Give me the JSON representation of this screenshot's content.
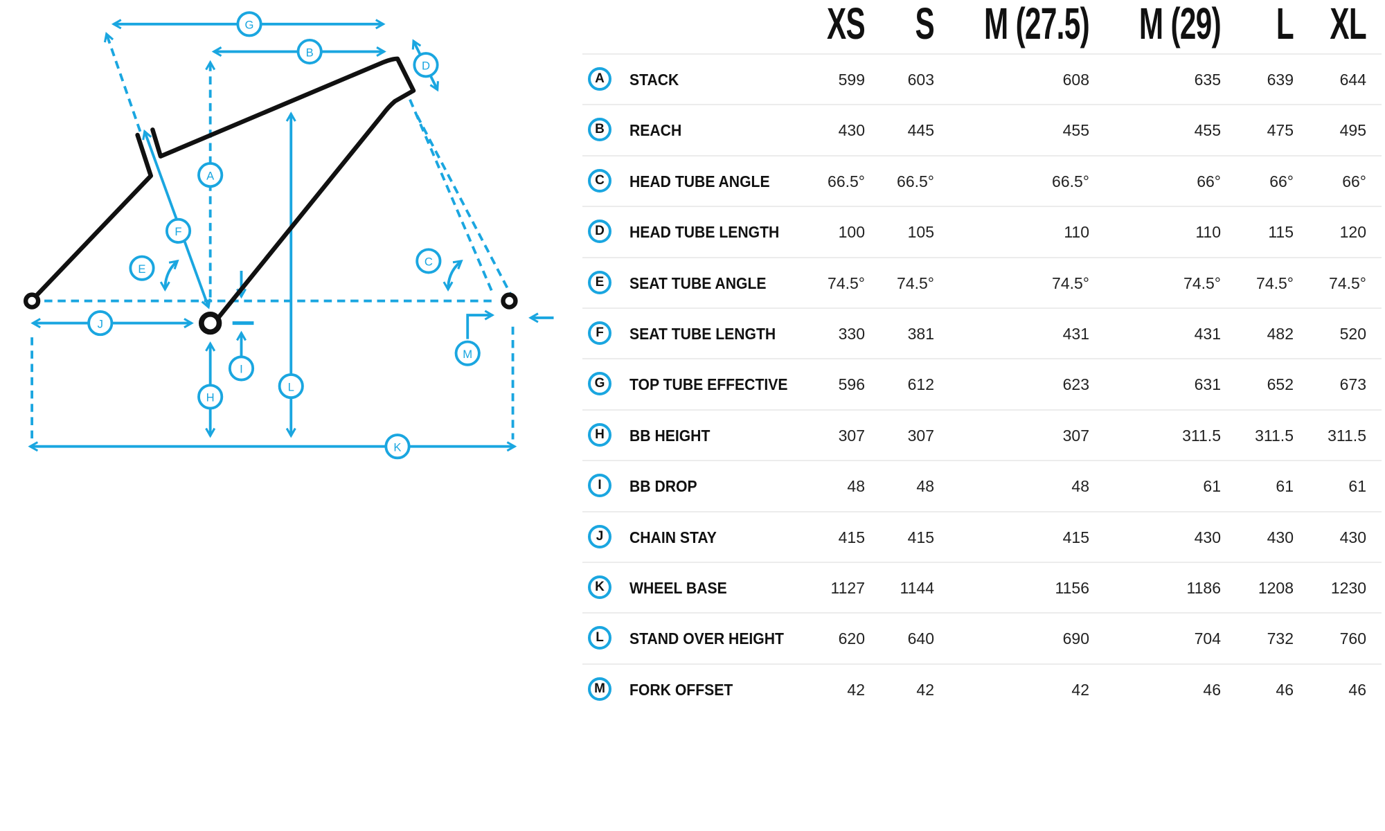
{
  "colors": {
    "accent": "#1aa6e0",
    "frame": "#111111",
    "divider": "#ececec"
  },
  "sizes": [
    "XS",
    "S",
    "M (27.5)",
    "M (29)",
    "L",
    "XL"
  ],
  "rows": [
    {
      "letter": "A",
      "label": "STACK",
      "values": [
        "599",
        "603",
        "608",
        "635",
        "639",
        "644"
      ]
    },
    {
      "letter": "B",
      "label": "REACH",
      "values": [
        "430",
        "445",
        "455",
        "455",
        "475",
        "495"
      ]
    },
    {
      "letter": "C",
      "label": "HEAD TUBE ANGLE",
      "values": [
        "66.5°",
        "66.5°",
        "66.5°",
        "66°",
        "66°",
        "66°"
      ]
    },
    {
      "letter": "D",
      "label": "HEAD TUBE LENGTH",
      "values": [
        "100",
        "105",
        "110",
        "110",
        "115",
        "120"
      ]
    },
    {
      "letter": "E",
      "label": "SEAT TUBE ANGLE",
      "values": [
        "74.5°",
        "74.5°",
        "74.5°",
        "74.5°",
        "74.5°",
        "74.5°"
      ]
    },
    {
      "letter": "F",
      "label": "SEAT TUBE LENGTH",
      "values": [
        "330",
        "381",
        "431",
        "431",
        "482",
        "520"
      ]
    },
    {
      "letter": "G",
      "label": "TOP TUBE EFFECTIVE",
      "values": [
        "596",
        "612",
        "623",
        "631",
        "652",
        "673"
      ]
    },
    {
      "letter": "H",
      "label": "BB HEIGHT",
      "values": [
        "307",
        "307",
        "307",
        "311.5",
        "311.5",
        "311.5"
      ]
    },
    {
      "letter": "I",
      "label": "BB DROP",
      "values": [
        "48",
        "48",
        "48",
        "61",
        "61",
        "61"
      ]
    },
    {
      "letter": "J",
      "label": "CHAIN STAY",
      "values": [
        "415",
        "415",
        "415",
        "430",
        "430",
        "430"
      ]
    },
    {
      "letter": "K",
      "label": "WHEEL BASE",
      "values": [
        "1127",
        "1144",
        "1156",
        "1186",
        "1208",
        "1230"
      ]
    },
    {
      "letter": "L",
      "label": "STAND OVER HEIGHT",
      "values": [
        "620",
        "640",
        "690",
        "704",
        "732",
        "760"
      ]
    },
    {
      "letter": "M",
      "label": "FORK OFFSET",
      "values": [
        "42",
        "42",
        "42",
        "46",
        "46",
        "46"
      ]
    }
  ],
  "diagram": {
    "markers": {
      "A": "A",
      "B": "B",
      "C": "C",
      "D": "D",
      "E": "E",
      "F": "F",
      "G": "G",
      "H": "H",
      "I": "I",
      "J": "J",
      "K": "K",
      "L": "L",
      "M": "M"
    }
  }
}
